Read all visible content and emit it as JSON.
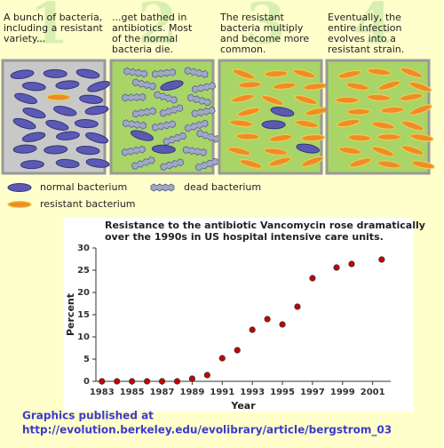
{
  "panels": [
    {
      "number": "1",
      "caption": [
        "A bunch of bacteria,",
        "including a resistant",
        "variety..."
      ]
    },
    {
      "number": "2",
      "caption": [
        "...get bathed in",
        "antibiotics. Most",
        "of the normal",
        "bacteria die."
      ]
    },
    {
      "number": "3",
      "caption": [
        "The resistant",
        "bacteria multiply",
        "and become more",
        "common."
      ]
    },
    {
      "number": "4",
      "caption": [
        "Eventually, the",
        "entire infection",
        "evolves into a",
        "resistant strain."
      ]
    }
  ],
  "legend": {
    "normal": "normal bacterium",
    "dead": "dead bacterium",
    "resistant": "resistant bacterium"
  },
  "chart_data": {
    "type": "scatter",
    "title": [
      "Resistance to the antibiotic Vancomycin rose dramatically",
      "over the 1990s in US hospital intensive care units."
    ],
    "x_label": "Year",
    "y_label": "Percent",
    "x": [
      1983,
      1984,
      1985,
      1986,
      1987,
      1988,
      1989,
      1990,
      1991,
      1992,
      1993,
      1994,
      1995,
      1996,
      1997,
      1998.6,
      1999.6,
      2001.6
    ],
    "values": [
      0,
      0,
      0,
      0,
      0,
      0,
      0.6,
      1.4,
      5.2,
      7,
      11.6,
      14,
      12.8,
      16.8,
      23.2,
      25.6,
      26.4,
      27.4
    ],
    "color": "#cc0000",
    "xlim": [
      1982.6,
      2002.2
    ],
    "ylim": [
      0,
      30
    ],
    "xticks": [
      1983,
      1985,
      1987,
      1989,
      1991,
      1993,
      1995,
      1997,
      1999,
      2001
    ],
    "yticks": [
      0,
      5,
      10,
      15,
      20,
      25,
      30
    ]
  },
  "footer": [
    "Graphics published at",
    "http://evolution.berkeley.edu/evolibrary/article/bergstrom_03"
  ]
}
